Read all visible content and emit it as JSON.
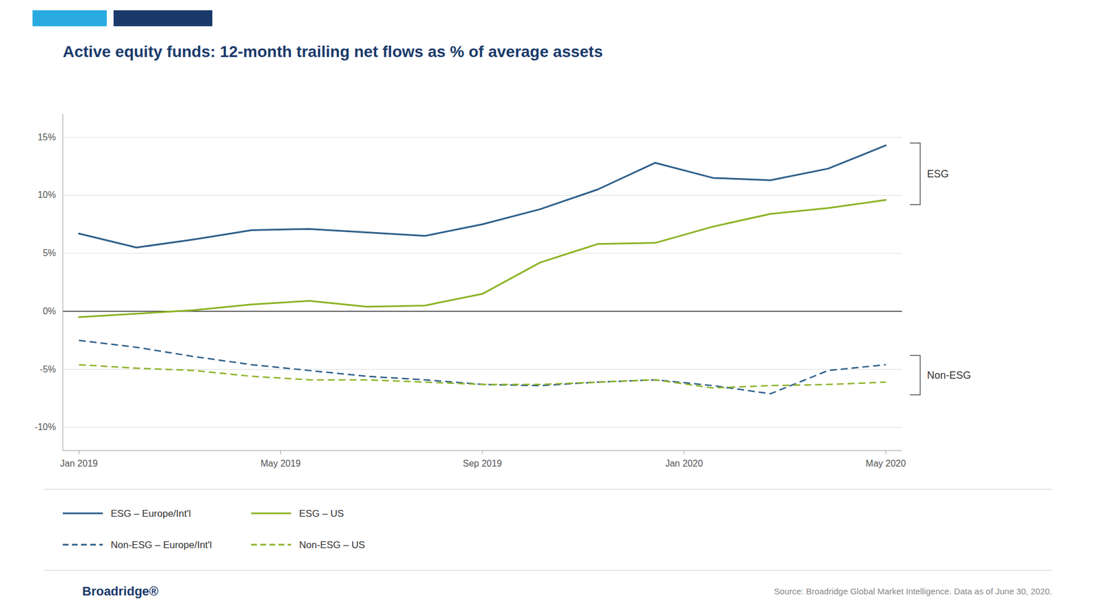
{
  "chart_data": {
    "type": "line",
    "title": "Active equity funds: 12-month trailing net flows as % of average assets",
    "title_color": "#1a3a6b",
    "background": "#ffffff",
    "header_colors": [
      "#29abe2",
      "#1a3a6b"
    ],
    "x": [
      0,
      1,
      2,
      3,
      4,
      5,
      6,
      7,
      8,
      9,
      10,
      11,
      12,
      13,
      14
    ],
    "xlim": [
      -0.28,
      14.28
    ],
    "xticks": [
      {
        "value": 0,
        "label": "Jan 2019"
      },
      {
        "value": 3.5,
        "label": "May 2019"
      },
      {
        "value": 7,
        "label": "Sep 2019"
      },
      {
        "value": 10.5,
        "label": "Jan 2020"
      },
      {
        "value": 14,
        "label": "May 2020"
      }
    ],
    "ylim": [
      -12,
      17
    ],
    "yticks": [
      {
        "value": -10,
        "label": "-10%"
      },
      {
        "value": -5,
        "label": "-5%"
      },
      {
        "value": 0,
        "label": "0%"
      },
      {
        "value": 5,
        "label": "5%"
      },
      {
        "value": 10,
        "label": "10%"
      },
      {
        "value": 15,
        "label": "15%"
      }
    ],
    "grid": true,
    "legend": "bottom",
    "series": [
      {
        "name": "ESG – Europe/Int'l",
        "color": "#2e5f8a",
        "line_style": "solid",
        "values": [
          6.7,
          5.5,
          6.2,
          7.0,
          7.1,
          6.8,
          6.5,
          7.5,
          8.8,
          10.5,
          12.8,
          11.5,
          11.3,
          12.3,
          14.3
        ]
      },
      {
        "name": "ESG – US",
        "color": "#8cb325",
        "line_style": "solid",
        "values": [
          -0.5,
          -0.2,
          0.1,
          0.6,
          0.9,
          0.4,
          0.5,
          1.5,
          4.2,
          5.8,
          5.9,
          7.3,
          8.4,
          8.9,
          9.6
        ]
      },
      {
        "name": "Non-ESG – Europe/Int'l",
        "color": "#2e5f8a",
        "line_style": "dashed",
        "values": [
          -2.5,
          -3.1,
          -3.9,
          -4.6,
          -5.1,
          -5.6,
          -5.9,
          -6.3,
          -6.4,
          -6.1,
          -5.9,
          -6.4,
          -7.1,
          -5.1,
          -4.6
        ]
      },
      {
        "name": "Non-ESG – US",
        "color": "#8cb325",
        "line_style": "dashed",
        "values": [
          -4.6,
          -4.9,
          -5.1,
          -5.6,
          -5.9,
          -5.9,
          -6.1,
          -6.3,
          -6.3,
          -6.1,
          -5.9,
          -6.6,
          -6.4,
          -6.3,
          -6.1
        ]
      }
    ],
    "annotations": [
      {
        "text": "ESG",
        "y": [
          14.5,
          9.2
        ]
      },
      {
        "text": "Non-ESG",
        "y": [
          -3.8,
          -7.2
        ]
      }
    ],
    "source": "Source: Broadridge Global Market Intelligence. Data as of June 30, 2020.",
    "brand": "Broadridge®"
  }
}
